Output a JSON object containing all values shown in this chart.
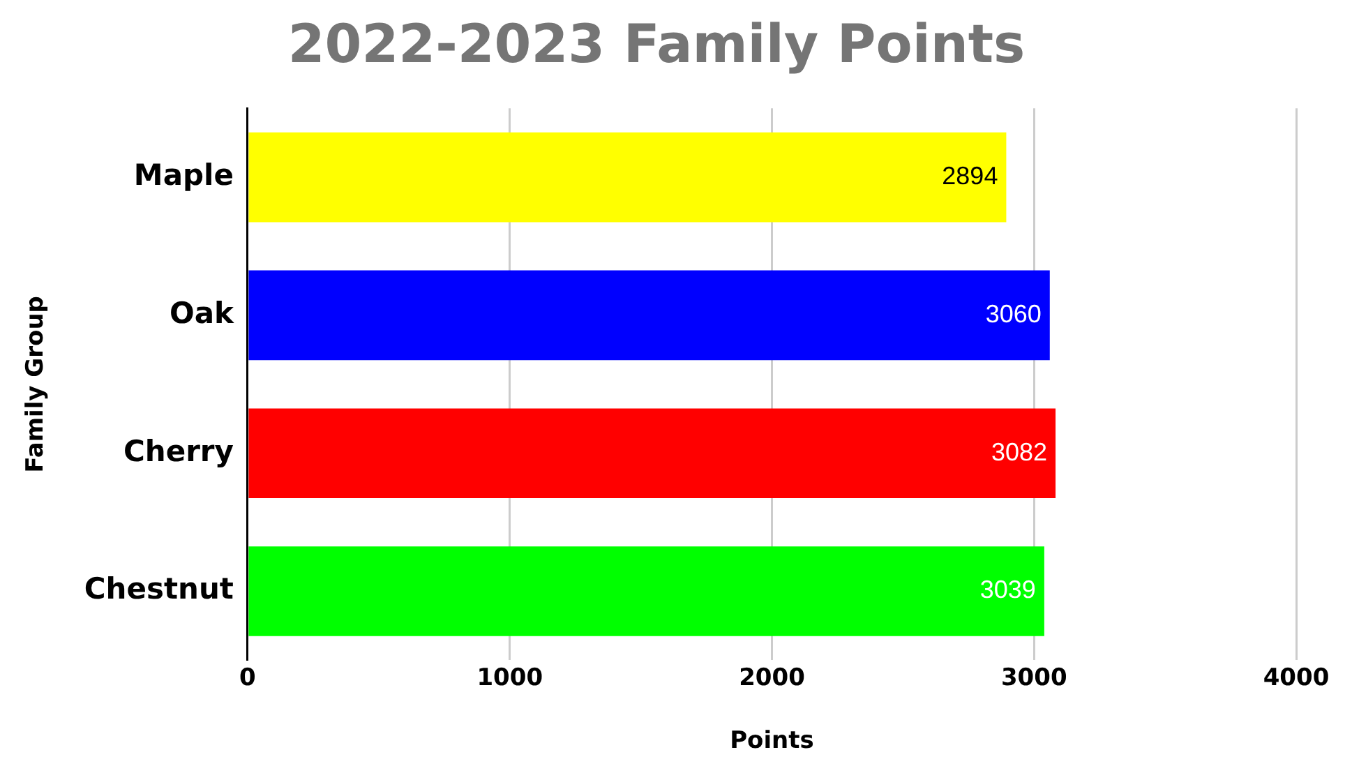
{
  "chart_data": {
    "type": "bar",
    "orientation": "horizontal",
    "title": "2022-2023 Family Points",
    "xlabel": "Points",
    "ylabel": "Family Group",
    "categories": [
      "Maple",
      "Oak",
      "Cherry",
      "Chestnut"
    ],
    "values": [
      2894,
      3060,
      3082,
      3039
    ],
    "colors": [
      "#ffff00",
      "#0000ff",
      "#ff0000",
      "#00ff00"
    ],
    "xlim": [
      0,
      4000
    ],
    "xticks": [
      0,
      1000,
      2000,
      3000,
      4000
    ],
    "grid": "x",
    "data_labels": true,
    "legend": false
  }
}
